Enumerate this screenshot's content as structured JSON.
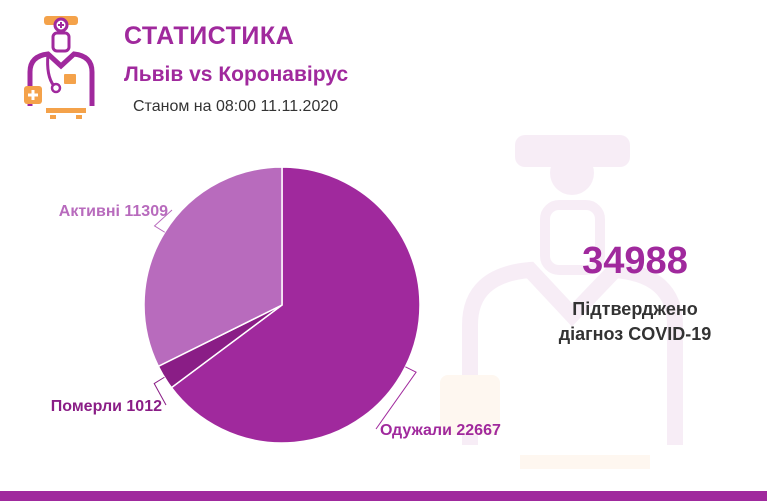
{
  "header": {
    "title": "СТАТИСТИКА",
    "subtitle": "Львів vs Коронавірус",
    "date": "Станом на 08:00 11.11.2020"
  },
  "summary": {
    "total": "34988",
    "caption_line1": "Підтверджено",
    "caption_line2": "діагноз COVID-19"
  },
  "colors": {
    "brand": "#a0299d",
    "active": "#b86bbd",
    "deaths": "#8a1d86",
    "recovered": "#a0299d",
    "orange": "#f4a24a",
    "text": "#333333"
  },
  "chart_data": {
    "type": "pie",
    "slices": [
      {
        "label": "Одужали 22667",
        "name": "Одужали",
        "value": 22667,
        "color": "#a0299d"
      },
      {
        "label": "Померли 1012",
        "name": "Померли",
        "value": 1012,
        "color": "#8a1d86"
      },
      {
        "label": "Активні 11309",
        "name": "Активні",
        "value": 11309,
        "color": "#b86bbd"
      }
    ],
    "legend": "none"
  }
}
